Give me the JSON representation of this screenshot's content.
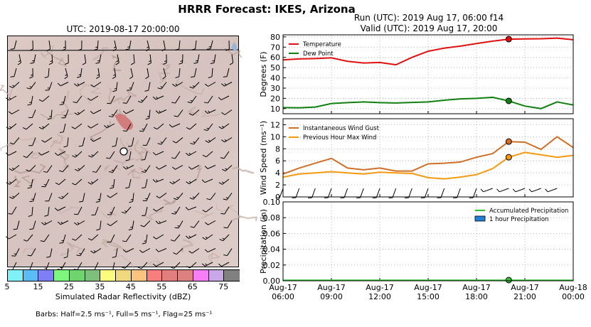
{
  "page": {
    "title": "HRRR Forecast: IKES, Arizona",
    "map_title": "UTC: 2019-08-17 20:00:00",
    "run_line": "Run (UTC): 2019 Aug 17, 06:00 f14",
    "valid_line": "Valid (UTC): 2019 Aug 17, 20:00",
    "colorbar_label": "Simulated Radar Reflectivity (dBZ)",
    "barbs_note": "Barbs: Half=2.5 ms⁻¹, Full=5 ms⁻¹, Flag=25 ms⁻¹"
  },
  "colorbar": {
    "colors": [
      "#7ef2f6",
      "#5bbcf5",
      "#7e7ef5",
      "#7ef77e",
      "#6ed46e",
      "#7cc07c",
      "#fbfb7e",
      "#f0d87e",
      "#fbc47e",
      "#f87e7e",
      "#e27e7e",
      "#dc8080",
      "#f87ef8",
      "#c8a8e6",
      "#808080"
    ],
    "tick_labels": [
      "5",
      "15",
      "25",
      "35",
      "45",
      "55",
      "65",
      "75"
    ]
  },
  "chart_data": [
    {
      "type": "line",
      "ylabel": "Degrees (F)",
      "ylim": [
        5,
        82
      ],
      "yticks": [
        10,
        20,
        30,
        40,
        50,
        60,
        70,
        80
      ],
      "grid": true,
      "legend_placement": "top-left",
      "x_hours": [
        6,
        7,
        8,
        9,
        10,
        11,
        12,
        13,
        14,
        15,
        16,
        17,
        18,
        19,
        20,
        21,
        22,
        23,
        24
      ],
      "series": [
        {
          "name": "Temperature",
          "color": "#e01010",
          "values": [
            57.5,
            58.5,
            58.8,
            59.5,
            56.2,
            54.5,
            55.0,
            52.8,
            60.0,
            66.0,
            69.0,
            71.0,
            73.5,
            75.8,
            77.8,
            78.0,
            78.2,
            78.8,
            77.2
          ]
        },
        {
          "name": "Dew Point",
          "color": "#108010",
          "values": [
            11.0,
            10.8,
            11.5,
            15.0,
            15.8,
            16.5,
            15.8,
            15.5,
            16.0,
            16.5,
            18.2,
            19.5,
            20.0,
            21.0,
            17.5,
            12.5,
            10.0,
            16.5,
            13.5
          ]
        }
      ],
      "highlight_hour": 20
    },
    {
      "type": "line",
      "ylabel": "Wind Speed (ms⁻¹)",
      "ylim": [
        0,
        13
      ],
      "yticks": [
        0,
        2,
        4,
        6,
        8,
        10,
        12
      ],
      "grid": true,
      "legend_placement": "top-left",
      "x_hours": [
        6,
        7,
        8,
        9,
        10,
        11,
        12,
        13,
        14,
        15,
        16,
        17,
        18,
        19,
        20,
        21,
        22,
        23,
        24
      ],
      "series": [
        {
          "name": "Instantaneous Wind Gust",
          "color": "#d07028",
          "values": [
            3.8,
            4.8,
            5.6,
            6.4,
            4.8,
            4.5,
            4.8,
            4.3,
            4.3,
            5.5,
            5.6,
            5.8,
            6.6,
            7.2,
            9.2,
            9.1,
            7.9,
            10.0,
            8.2
          ]
        },
        {
          "name": "Previous Hour Max Wind",
          "color": "#f59a10",
          "values": [
            3.3,
            3.8,
            4.0,
            4.2,
            4.0,
            3.8,
            4.1,
            4.0,
            3.9,
            3.2,
            3.0,
            3.3,
            3.7,
            4.7,
            6.6,
            7.4,
            7.0,
            6.6,
            6.9
          ]
        }
      ],
      "highlight_hour": 20
    },
    {
      "type": "line",
      "ylabel": "Precipitation (in)",
      "ylim": [
        0,
        0.1
      ],
      "yticks": [
        0.0,
        0.02,
        0.04,
        0.06,
        0.08,
        0.1
      ],
      "ytick_labels": [
        "0.00",
        "0.02",
        "0.04",
        "0.06",
        "0.08",
        "0.10"
      ],
      "grid": true,
      "legend_placement": "top-right",
      "x_hours": [
        6,
        7,
        8,
        9,
        10,
        11,
        12,
        13,
        14,
        15,
        16,
        17,
        18,
        19,
        20,
        21,
        22,
        23,
        24
      ],
      "series": [
        {
          "name": "Accumulated Precipitation",
          "color": "#30c030",
          "values": [
            0,
            0,
            0,
            0,
            0,
            0,
            0,
            0,
            0,
            0,
            0,
            0,
            0,
            0,
            0,
            0,
            0,
            0,
            0
          ]
        },
        {
          "name": "1 hour Precipitation",
          "color": "#2080d8",
          "values": [
            0,
            0,
            0,
            0,
            0,
            0,
            0,
            0,
            0,
            0,
            0,
            0,
            0,
            0,
            0,
            0,
            0,
            0,
            0
          ]
        }
      ],
      "xlim": [
        6,
        24
      ],
      "xticks": [
        {
          "hour": 6,
          "line1": "Aug-17",
          "line2": "06:00"
        },
        {
          "hour": 9,
          "line1": "Aug-17",
          "line2": "09:00"
        },
        {
          "hour": 12,
          "line1": "Aug-17",
          "line2": "12:00"
        },
        {
          "hour": 15,
          "line1": "Aug-17",
          "line2": "15:00"
        },
        {
          "hour": 18,
          "line1": "Aug-17",
          "line2": "18:00"
        },
        {
          "hour": 21,
          "line1": "Aug-17",
          "line2": "21:00"
        },
        {
          "hour": 24,
          "line1": "Aug-18",
          "line2": "00:00"
        }
      ],
      "highlight_hour": 20
    }
  ]
}
